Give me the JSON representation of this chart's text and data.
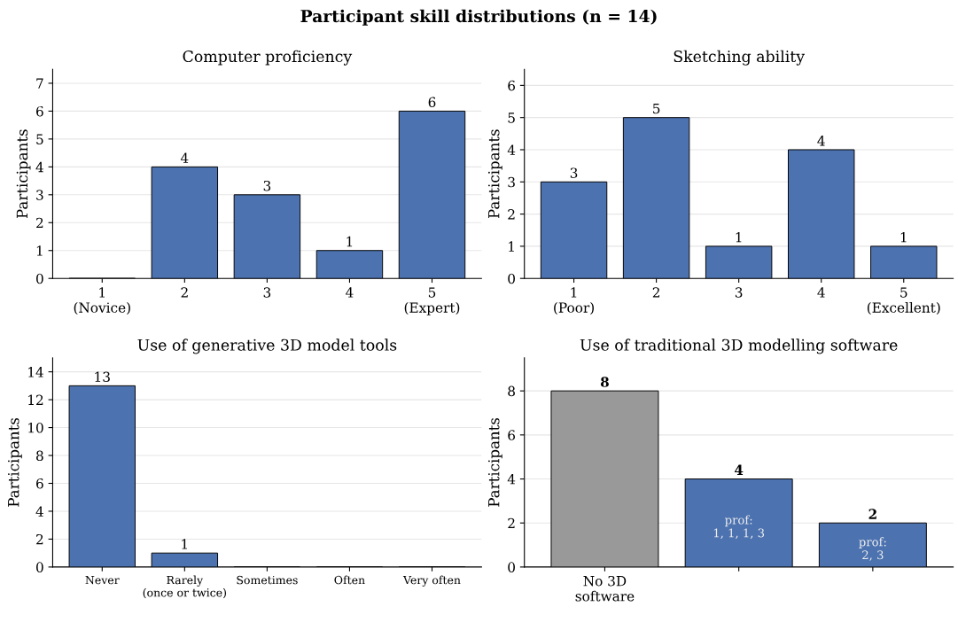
{
  "chart_data": [
    {
      "type": "bar",
      "title": "Computer proficiency",
      "ylabel": "Participants",
      "annotations": [
        "Participant skill distributions (n = 14)"
      ],
      "categories": [
        "1\n(Novice)",
        "2",
        "3",
        "4",
        "5\n(Expert)"
      ],
      "values": [
        0,
        4,
        3,
        1,
        6
      ],
      "color": "#4c72b0",
      "value_labels": [
        null,
        "4",
        "3",
        "1",
        "6"
      ],
      "ylim": [
        0,
        7.5
      ],
      "yticks": [
        0,
        1,
        2,
        3,
        4,
        5,
        6,
        7
      ],
      "grid": "y",
      "legend": false
    },
    {
      "type": "bar",
      "title": "Sketching ability",
      "ylabel": "Participants",
      "categories": [
        "1\n(Poor)",
        "2",
        "3",
        "4",
        "5\n(Excellent)"
      ],
      "values": [
        3,
        5,
        1,
        4,
        1
      ],
      "color": "#4c72b0",
      "value_labels": [
        "3",
        "5",
        "1",
        "4",
        "1"
      ],
      "ylim": [
        0,
        6.5
      ],
      "yticks": [
        0,
        1,
        2,
        3,
        4,
        5,
        6
      ],
      "grid": "y",
      "legend": false
    },
    {
      "type": "bar",
      "title": "Use of generative 3D model tools",
      "ylabel": "Participants",
      "categories": [
        "Never",
        "Rarely\n(once or twice)",
        "Sometimes",
        "Often",
        "Very often"
      ],
      "values": [
        13,
        1,
        0,
        0,
        0
      ],
      "color": "#4c72b0",
      "value_labels": [
        "13",
        "1",
        null,
        null,
        null
      ],
      "ylim": [
        0,
        15
      ],
      "yticks": [
        0,
        2,
        4,
        6,
        8,
        10,
        12,
        14
      ],
      "grid": "y",
      "legend": false
    },
    {
      "type": "bar",
      "title": "Use of traditional 3D modelling software",
      "ylabel": "Participants",
      "categories": [
        "No 3D\nsoftware",
        null,
        null
      ],
      "values": [
        8,
        4,
        2
      ],
      "colors": [
        "#999999",
        "#4c72b0",
        "#4c72b0"
      ],
      "value_labels": [
        "8",
        "4",
        "2"
      ],
      "annotations": [
        "prof:\n1, 1, 1, 3",
        "prof:\n2, 3"
      ],
      "ylim": [
        0,
        9.5
      ],
      "yticks": [
        0,
        2,
        4,
        6,
        8
      ],
      "grid": "y",
      "legend": false
    }
  ]
}
